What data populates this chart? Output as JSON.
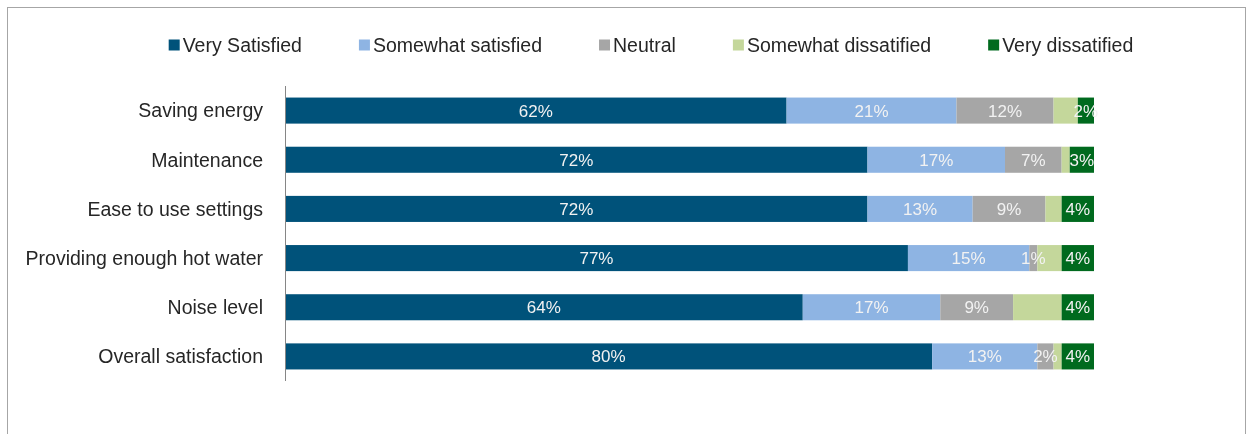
{
  "chart_data": {
    "type": "bar",
    "orientation": "horizontal",
    "stacked": true,
    "categories": [
      "Saving energy",
      "Maintenance",
      "Ease to use settings",
      "Providing enough hot water",
      "Noise level",
      "Overall satisfaction"
    ],
    "series": [
      {
        "name": "Very Satisfied",
        "color": "#00527a",
        "values": [
          62,
          72,
          72,
          77,
          64,
          80
        ],
        "value_labels": [
          "62%",
          "72%",
          "72%",
          "77%",
          "64%",
          "80%"
        ]
      },
      {
        "name": "Somewhat satisfied",
        "color": "#8eb4e3",
        "values": [
          21,
          17,
          13,
          15,
          17,
          13
        ],
        "value_labels": [
          "21%",
          "17%",
          "13%",
          "15%",
          "17%",
          "13%"
        ]
      },
      {
        "name": "Neutral",
        "color": "#a6a6a6",
        "values": [
          12,
          7,
          9,
          1,
          9,
          2
        ],
        "value_labels": [
          "12%",
          "7%",
          "9%",
          "1%",
          "9%",
          "2%"
        ]
      },
      {
        "name": "Somewhat dissatified",
        "color": "#c4d79b",
        "values": [
          3,
          1,
          2,
          3,
          6,
          1
        ],
        "value_labels": [
          null,
          null,
          null,
          null,
          null,
          null
        ]
      },
      {
        "name": "Very dissatified",
        "color": "#006a1e",
        "values": [
          2,
          3,
          4,
          4,
          4,
          4
        ],
        "value_labels": [
          "2%",
          "3%",
          "4%",
          "4%",
          "4%",
          "4%"
        ]
      }
    ],
    "xlim": [
      0,
      100
    ],
    "tick_labels": "y",
    "legend": "top"
  }
}
